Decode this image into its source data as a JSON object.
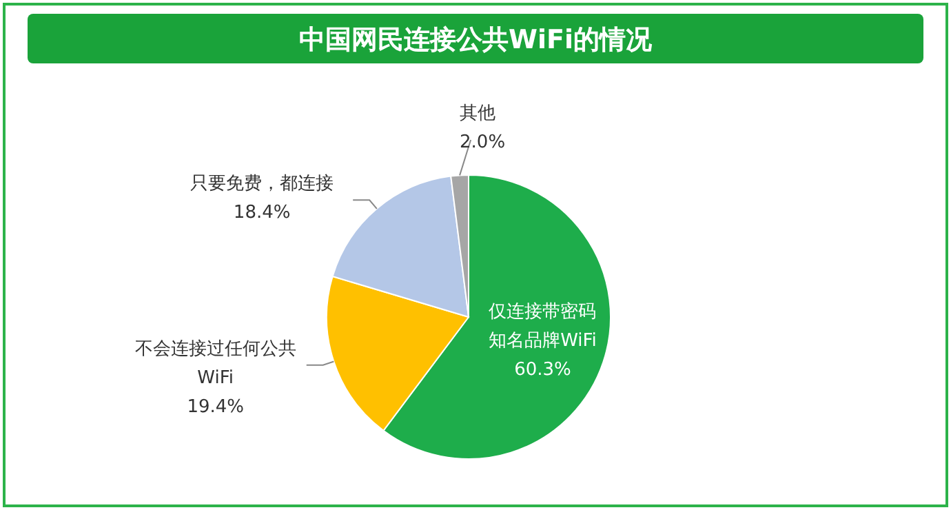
{
  "chart_data": {
    "type": "pie",
    "title": "中国网民连接公共WiFi的情况",
    "categories": [
      "仅连接带密码知名品牌WiFi",
      "不会连接过任何公共WiFi",
      "只要免费，都连接",
      "其他"
    ],
    "values": [
      60.3,
      19.4,
      18.4,
      2.0
    ],
    "colors": [
      "#1ead4b",
      "#ffc000",
      "#b4c7e7",
      "#a6a6a6"
    ],
    "value_labels": [
      "60.3%",
      "19.4%",
      "18.4%",
      "2.0%"
    ]
  }
}
